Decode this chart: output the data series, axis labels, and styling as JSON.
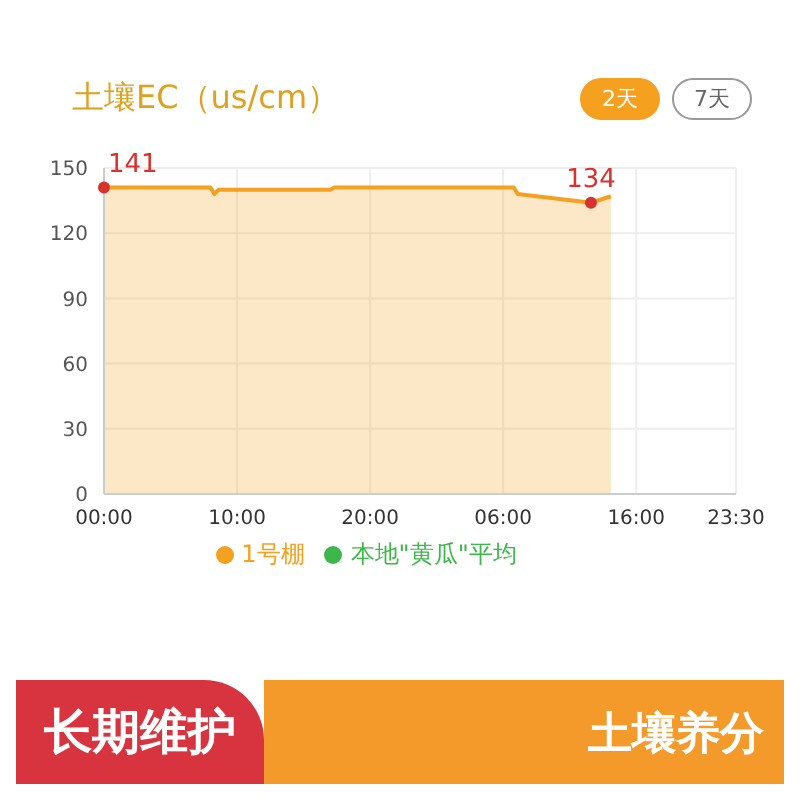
{
  "chart_data": {
    "type": "area",
    "title": "土壤EC（us/cm）",
    "x": [
      "--01-01T00:00",
      "--01-01T08:00",
      "--01-01T08:18",
      "--01-01T08:36",
      "--01-01T17:00",
      "--01-01T17:18",
      "--01-02T06:48",
      "--01-02T07:06",
      "--01-02T12:36",
      "--01-02T14:06"
    ],
    "series": [
      {
        "name": "1号棚",
        "color": "#f5a01f",
        "values": [
          141,
          141,
          138,
          140,
          140,
          141,
          141,
          138,
          134,
          137
        ]
      },
      {
        "name": "本地\"黄瓜\"平均",
        "color": "#3cb84a",
        "values": [
          null,
          null,
          null,
          null,
          null,
          null,
          null,
          null,
          null,
          null
        ]
      }
    ],
    "xlim": [
      "--01-01T00:00",
      "--01-02T23:30"
    ],
    "xticks": [
      {
        "value": "--01-01T00:00",
        "label": "00:00"
      },
      {
        "value": "--01-01T10:00",
        "label": "10:00"
      },
      {
        "value": "--01-01T20:00",
        "label": "20:00"
      },
      {
        "value": "--01-02T06:00",
        "label": "06:00"
      },
      {
        "value": "--01-02T16:00",
        "label": "16:00"
      },
      {
        "value": "--01-02T23:30",
        "label": "23:30"
      }
    ],
    "ylim": [
      0,
      150
    ],
    "yticks": [
      0,
      30,
      60,
      90,
      120,
      150
    ],
    "grid": true,
    "legend": "bottom",
    "annotations": [
      {
        "text": "141",
        "x": "--01-01T00:00",
        "y": 141
      },
      {
        "text": "134",
        "x": "--01-02T12:36",
        "y": 134
      },
      "2天",
      "7天",
      "长期维护",
      "土壤养分"
    ]
  }
}
